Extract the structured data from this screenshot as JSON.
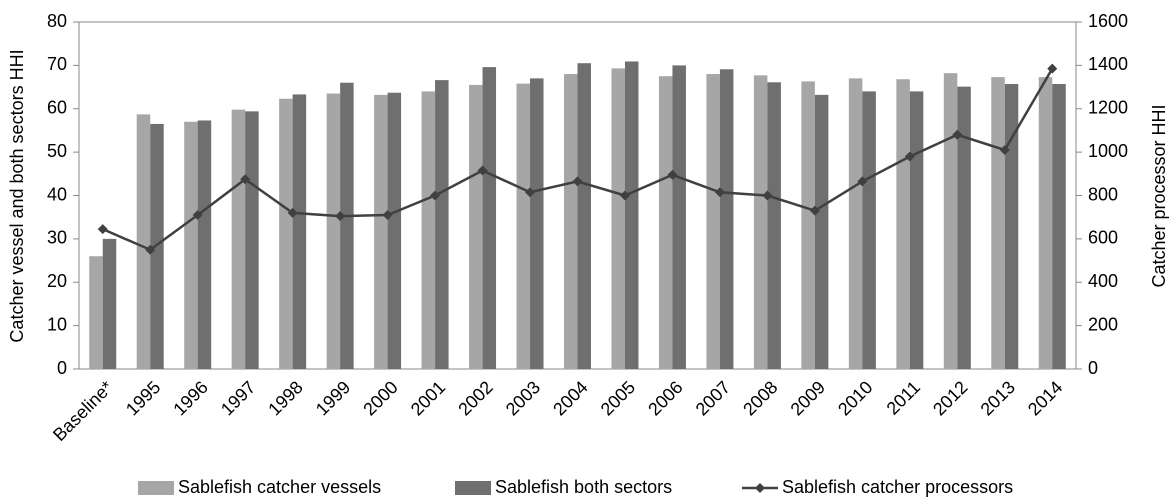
{
  "chart_data": {
    "type": "bar",
    "categories": [
      "Baseline*",
      "1995",
      "1996",
      "1997",
      "1998",
      "1999",
      "2000",
      "2001",
      "2002",
      "2003",
      "2004",
      "2005",
      "2006",
      "2007",
      "2008",
      "2009",
      "2010",
      "2011",
      "2012",
      "2013",
      "2014"
    ],
    "series": [
      {
        "name": "Sablefish catcher vessels",
        "color": "#a6a6a6",
        "values": [
          26,
          58.7,
          57,
          59.8,
          62.3,
          63.5,
          63.2,
          64,
          65.5,
          65.8,
          68,
          69.3,
          67.5,
          68,
          67.7,
          66.3,
          67,
          66.8,
          68.2,
          67.3,
          67.3
        ]
      },
      {
        "name": "Sablefish both sectors",
        "color": "#6f6f6f",
        "values": [
          30,
          56.5,
          57.3,
          59.4,
          63.3,
          66,
          63.7,
          66.6,
          69.6,
          67,
          70.5,
          70.9,
          70,
          69.1,
          66.1,
          63.2,
          64,
          64,
          65.1,
          65.7,
          65.7
        ]
      },
      {
        "name": "Sablefish catcher processors",
        "color": "#404040",
        "type": "line",
        "axis": "y2",
        "values": [
          645,
          550,
          710,
          875,
          720,
          705,
          710,
          800,
          915,
          815,
          865,
          800,
          895,
          815,
          800,
          730,
          865,
          980,
          1080,
          1010,
          1385
        ]
      }
    ],
    "ylabel": "Catcher vessel and both sectors HHI",
    "y2label": "Catcher processor HHI",
    "ylim": [
      0,
      80
    ],
    "yticks": [
      0,
      10,
      20,
      30,
      40,
      50,
      60,
      70,
      80
    ],
    "y2lim": [
      0,
      1600
    ],
    "y2ticks": [
      0,
      200,
      400,
      600,
      800,
      1000,
      1200,
      1400,
      1600
    ],
    "grid": false,
    "legend": "bottom"
  }
}
